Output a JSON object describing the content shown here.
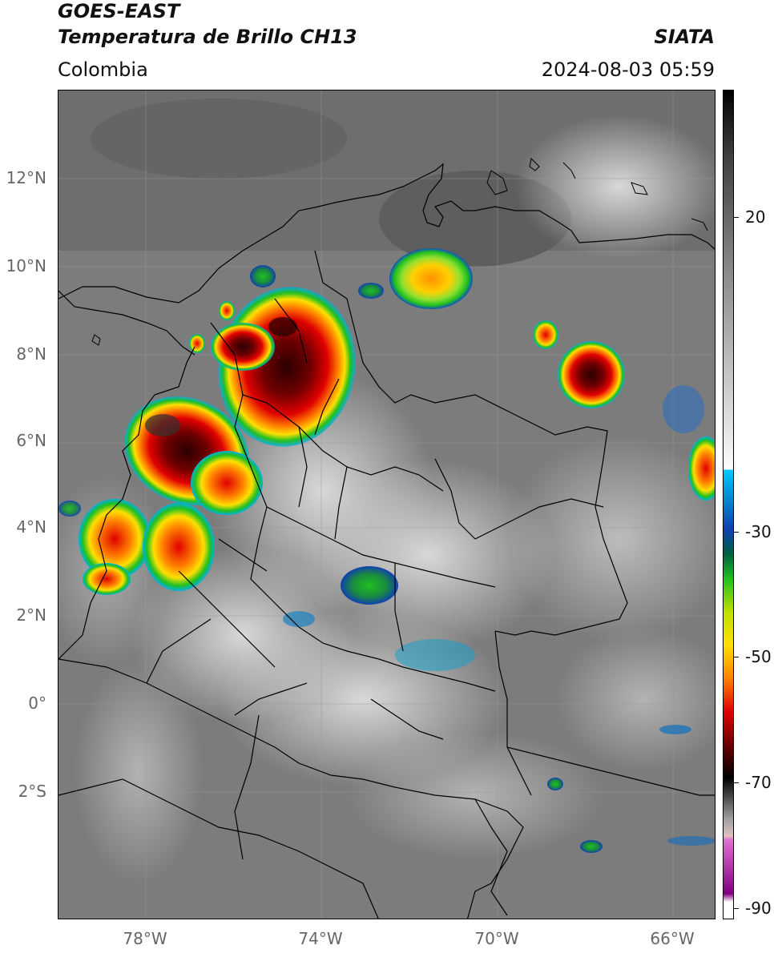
{
  "header": {
    "satellite": "GOES-EAST",
    "product": "Temperatura de Brillo CH13",
    "region": "Colombia",
    "source": "SIATA",
    "datetime": "2024-08-03 05:59"
  },
  "map": {
    "lat_labels": [
      "12°N",
      "10°N",
      "8°N",
      "6°N",
      "4°N",
      "2°N",
      "0°",
      "2°S"
    ],
    "lon_labels": [
      "78°W",
      "74°W",
      "70°W",
      "66°W"
    ],
    "gridlines": true
  },
  "colorbar": {
    "ticks": [
      "20",
      "-30",
      "-50",
      "-70",
      "-90"
    ],
    "units_hint": "brightness temperature",
    "colors": {
      "warm_gray": "#c8c8c8",
      "cyan": "#00c8ff",
      "blue": "#1040b0",
      "green": "#20c020",
      "yellow": "#ffe000",
      "orange": "#ff8000",
      "red": "#e00000",
      "darkred": "#500000",
      "black": "#000000",
      "pink": "#e070d0",
      "purple": "#800080",
      "white": "#ffffff"
    }
  }
}
